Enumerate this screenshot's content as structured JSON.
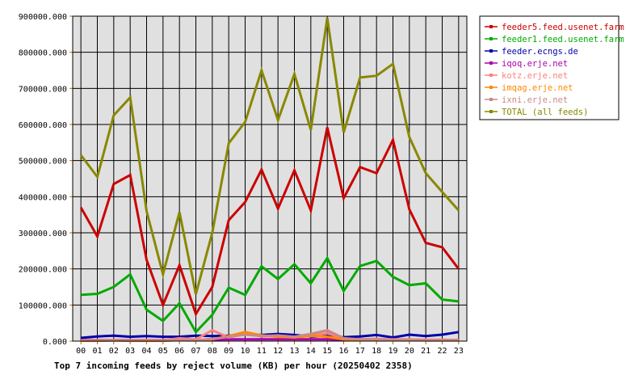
{
  "chart_data": {
    "type": "line",
    "caption": "Top 7 incoming feeds by reject volume (KB) per hour (20250402 2358)",
    "categories": [
      "00",
      "01",
      "02",
      "03",
      "04",
      "05",
      "06",
      "07",
      "08",
      "09",
      "10",
      "11",
      "12",
      "13",
      "14",
      "15",
      "16",
      "17",
      "18",
      "19",
      "20",
      "21",
      "22",
      "23"
    ],
    "ylim": [
      0,
      900000
    ],
    "y_ticks": [
      0,
      100000,
      200000,
      300000,
      400000,
      500000,
      600000,
      700000,
      800000,
      900000
    ],
    "y_tick_labels": [
      "0.000",
      "100000.000",
      "200000.000",
      "300000.000",
      "400000.000",
      "500000.000",
      "600000.000",
      "700000.000",
      "800000.000",
      "900000.000"
    ],
    "grid": true,
    "legend_position": "top-right",
    "series": [
      {
        "name": "feeder5.feed.usenet.farm",
        "color": "#cc0000",
        "values": [
          370000,
          290000,
          435000,
          460000,
          225000,
          100000,
          210000,
          75000,
          150000,
          335000,
          385000,
          475000,
          367000,
          473000,
          362000,
          592000,
          396000,
          482000,
          465000,
          557000,
          365000,
          272000,
          260000,
          200000
        ]
      },
      {
        "name": "feeder1.feed.usenet.farm",
        "color": "#00aa00",
        "values": [
          128000,
          131000,
          150000,
          185000,
          87000,
          56000,
          105000,
          25000,
          73000,
          148000,
          128000,
          207000,
          172000,
          213000,
          160000,
          230000,
          139000,
          208000,
          222000,
          178000,
          155000,
          160000,
          115000,
          110000
        ]
      },
      {
        "name": "feeder.ecngs.de",
        "color": "#0000aa",
        "values": [
          9000,
          13000,
          15000,
          12000,
          14000,
          12000,
          12000,
          15000,
          14000,
          15000,
          19000,
          17000,
          20000,
          17000,
          13000,
          14000,
          11000,
          13000,
          17000,
          10000,
          18000,
          14000,
          18000,
          25000
        ]
      },
      {
        "name": "iqoq.erje.net",
        "color": "#aa00aa",
        "values": [
          3000,
          3000,
          3000,
          3000,
          3000,
          3000,
          4000,
          3000,
          4000,
          5000,
          5000,
          5000,
          5000,
          5000,
          5000,
          5000,
          4000,
          4000,
          4000,
          4000,
          4000,
          3000,
          3000,
          3000
        ]
      },
      {
        "name": "kotz.erje.net",
        "color": "#ff8080",
        "values": [
          2000,
          2000,
          3000,
          2000,
          3000,
          2000,
          8000,
          5000,
          30000,
          10000,
          22000,
          13000,
          15000,
          12000,
          14000,
          22000,
          7000,
          5000,
          6000,
          5000,
          5000,
          4000,
          4000,
          3000
        ]
      },
      {
        "name": "imqag.erje.net",
        "color": "#ff8800",
        "values": [
          1000,
          1000,
          2000,
          1000,
          1000,
          1000,
          3000,
          2000,
          5000,
          14000,
          25000,
          16000,
          12000,
          10000,
          15000,
          12000,
          5000,
          4000,
          3000,
          3000,
          3000,
          2000,
          2000,
          2000
        ]
      },
      {
        "name": "ixni.erje.net",
        "color": "#cc8888",
        "values": [
          2000,
          2000,
          2000,
          2000,
          2000,
          2000,
          4000,
          3000,
          6000,
          12000,
          18000,
          14000,
          16000,
          12000,
          20000,
          30000,
          8000,
          5000,
          5000,
          4000,
          4000,
          3000,
          3000,
          3000
        ]
      },
      {
        "name": "TOTAL (all feeds)",
        "color": "#888800",
        "values": [
          515000,
          455000,
          625000,
          675000,
          360000,
          185000,
          357000,
          130000,
          300000,
          548000,
          607000,
          750000,
          612000,
          740000,
          585000,
          895000,
          578000,
          730000,
          735000,
          768000,
          565000,
          465000,
          413000,
          362000
        ]
      }
    ]
  },
  "colors": {
    "plot_bg": "#e0e0e0",
    "grid": "#000000",
    "axis_tick_orange": "#cc6600"
  }
}
